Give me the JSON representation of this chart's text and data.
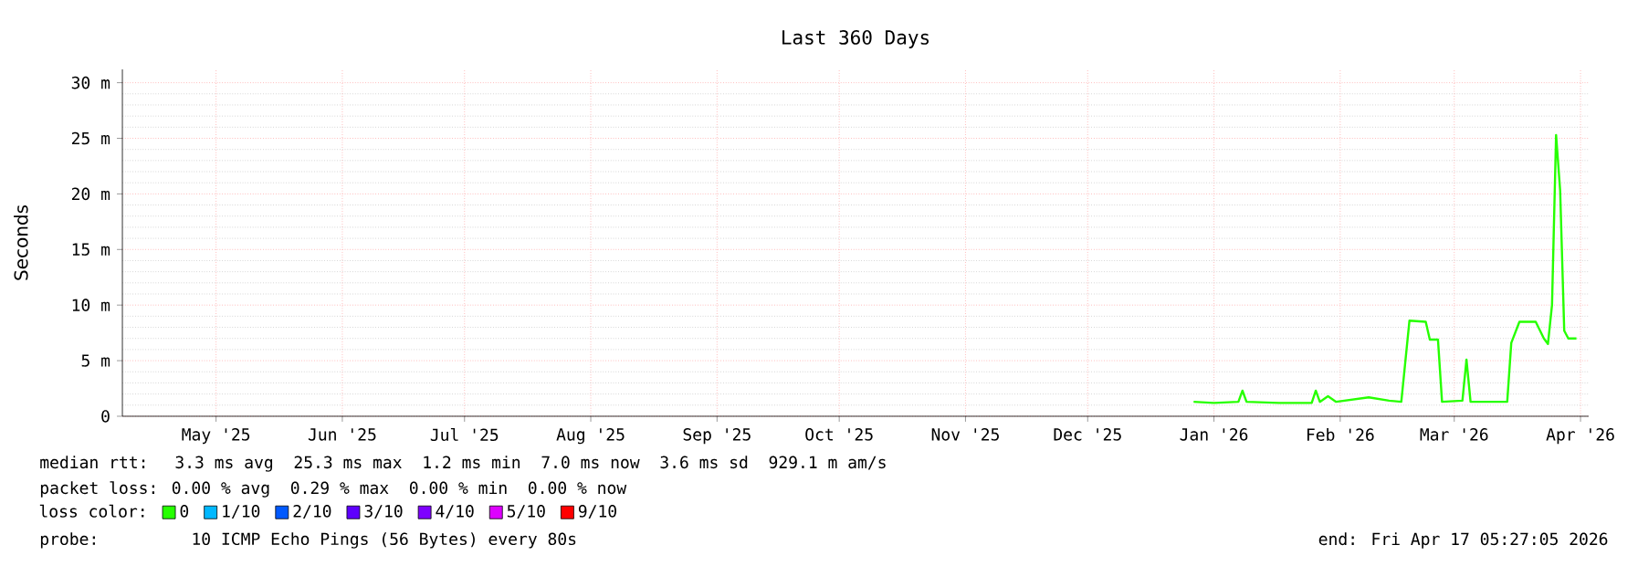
{
  "chart_data": {
    "type": "line",
    "title": "Last 360 Days",
    "ylabel": "Seconds",
    "legend_title": "loss color:",
    "legend": "bottom left",
    "grid": true,
    "marker": "none",
    "line_style": "solid",
    "xlim": [
      "2025-04-22",
      "2026-04-17"
    ],
    "xticks": [
      {
        "value": "2025-05-15",
        "label": "May '25"
      },
      {
        "value": "2025-06-15",
        "label": "Jun '25"
      },
      {
        "value": "2025-07-15",
        "label": "Jul '25"
      },
      {
        "value": "2025-08-15",
        "label": "Aug '25"
      },
      {
        "value": "2025-09-15",
        "label": "Sep '25"
      },
      {
        "value": "2025-10-15",
        "label": "Oct '25"
      },
      {
        "value": "2025-11-15",
        "label": "Nov '25"
      },
      {
        "value": "2025-12-15",
        "label": "Dec '25"
      },
      {
        "value": "2026-01-15",
        "label": "Jan '26"
      },
      {
        "value": "2026-02-15",
        "label": "Feb '26"
      },
      {
        "value": "2026-03-15",
        "label": "Mar '26"
      },
      {
        "value": "2026-04-15",
        "label": "Apr '26"
      }
    ],
    "ylim": [
      0,
      31.2
    ],
    "yticks": [
      0,
      {
        "value": 5,
        "label": "5 m"
      },
      {
        "value": 10,
        "label": "10 m"
      },
      {
        "value": 15,
        "label": "15 m"
      },
      {
        "value": 20,
        "label": "20 m"
      },
      {
        "value": 25,
        "label": "25 m"
      },
      {
        "value": 30,
        "label": "30 m"
      }
    ],
    "x": [
      "2026-01-10",
      "2026-01-15",
      "2026-01-21",
      "2026-01-22",
      "2026-01-23",
      "2026-01-31",
      "2026-02-08",
      "2026-02-09",
      "2026-02-10",
      "2026-02-12",
      "2026-02-14",
      "2026-02-22",
      "2026-02-27",
      "2026-03-02",
      "2026-03-04",
      "2026-03-08",
      "2026-03-09",
      "2026-03-11",
      "2026-03-12",
      "2026-03-17",
      "2026-03-18",
      "2026-03-19",
      "2026-03-28",
      "2026-03-29",
      "2026-03-31",
      "2026-04-04",
      "2026-04-06",
      "2026-04-07",
      "2026-04-08",
      "2026-04-09",
      "2026-04-10",
      "2026-04-11",
      "2026-04-12",
      "2026-04-14"
    ],
    "series": [
      {
        "name": "0",
        "color": "#26ff00",
        "values": [
          1.3,
          1.2,
          1.3,
          2.3,
          1.3,
          1.2,
          1.2,
          2.3,
          1.3,
          1.8,
          1.3,
          1.7,
          1.4,
          1.3,
          8.6,
          8.5,
          6.9,
          6.9,
          1.3,
          1.4,
          5.1,
          1.3,
          1.3,
          6.6,
          8.5,
          8.5,
          7.0,
          6.5,
          10.0,
          25.3,
          20.3,
          7.7,
          7.0,
          7.0
        ]
      },
      {
        "name": "1/10",
        "color": "#00b8ff",
        "values": [
          null,
          null,
          null,
          null,
          null,
          null,
          null,
          null,
          null,
          null,
          null,
          null,
          null,
          null,
          null,
          null,
          null,
          null,
          null,
          null,
          null,
          null,
          null,
          null,
          null,
          null,
          null,
          null,
          null,
          null,
          null,
          null,
          null,
          null
        ]
      },
      {
        "name": "2/10",
        "color": "#0059ff",
        "values": [
          null,
          null,
          null,
          null,
          null,
          null,
          null,
          null,
          null,
          null,
          null,
          null,
          null,
          null,
          null,
          null,
          null,
          null,
          null,
          null,
          null,
          null,
          null,
          null,
          null,
          null,
          null,
          null,
          null,
          null,
          null,
          null,
          null,
          null
        ]
      },
      {
        "name": "3/10",
        "color": "#5e00ff",
        "values": [
          null,
          null,
          null,
          null,
          null,
          null,
          null,
          null,
          null,
          null,
          null,
          null,
          null,
          null,
          null,
          null,
          null,
          null,
          null,
          null,
          null,
          null,
          null,
          null,
          null,
          null,
          null,
          null,
          null,
          null,
          null,
          null,
          null,
          null
        ]
      },
      {
        "name": "4/10",
        "color": "#7e00ff",
        "values": [
          null,
          null,
          null,
          null,
          null,
          null,
          null,
          null,
          null,
          null,
          null,
          null,
          null,
          null,
          null,
          null,
          null,
          null,
          null,
          null,
          null,
          null,
          null,
          null,
          null,
          null,
          null,
          null,
          null,
          null,
          null,
          null,
          null,
          null
        ]
      },
      {
        "name": "5/10",
        "color": "#dd00ff",
        "values": [
          null,
          null,
          null,
          null,
          null,
          null,
          null,
          null,
          null,
          null,
          null,
          null,
          null,
          null,
          null,
          null,
          null,
          null,
          null,
          null,
          null,
          null,
          null,
          null,
          null,
          null,
          null,
          null,
          null,
          null,
          null,
          null,
          null,
          null
        ]
      },
      {
        "name": "9/10",
        "color": "#ff0000",
        "values": [
          null,
          null,
          null,
          null,
          null,
          null,
          null,
          null,
          null,
          null,
          null,
          null,
          null,
          null,
          null,
          null,
          null,
          null,
          null,
          null,
          null,
          null,
          null,
          null,
          null,
          null,
          null,
          null,
          null,
          null,
          null,
          null,
          null,
          null
        ]
      }
    ],
    "annotations": [
      "median rtt:  3.3 ms avg  25.3 ms max  1.2 ms min  7.0 ms now  3.6 ms sd  929.1 m am/s",
      "packet loss: 0.00 % avg  0.29 % max  0.00 % min  0.00 % now",
      "probe:       10 ICMP Echo Pings (56 Bytes) every 80s",
      "end: Fri Apr 17 05:27:05 2026"
    ]
  }
}
